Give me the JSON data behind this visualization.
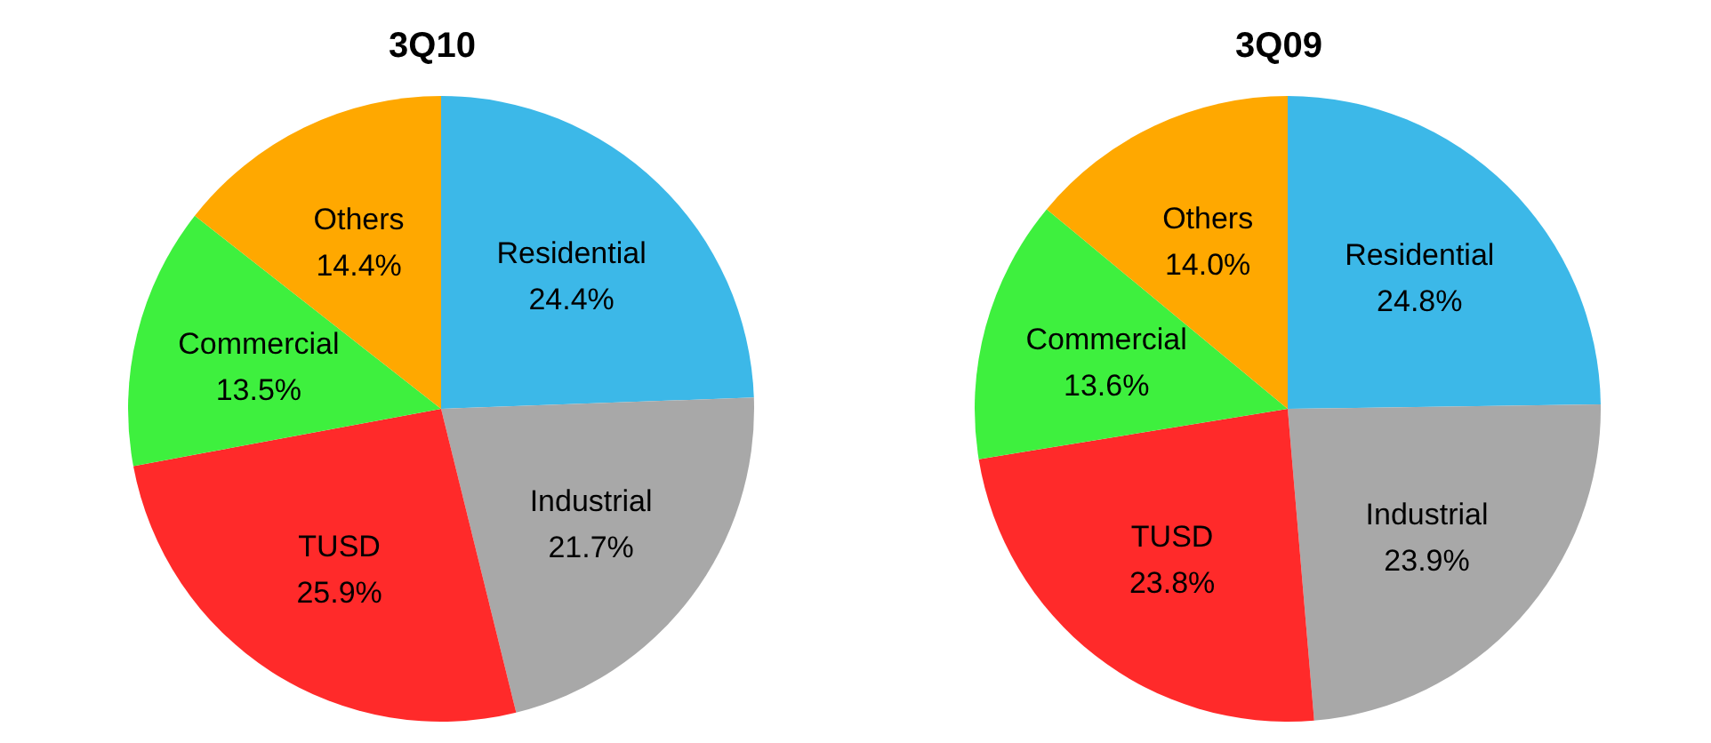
{
  "chart_data": [
    {
      "type": "pie",
      "title": "3Q10",
      "categories": [
        "Residential",
        "Industrial",
        "TUSD",
        "Commercial",
        "Others"
      ],
      "values": [
        24.4,
        21.7,
        25.9,
        13.5,
        14.4
      ],
      "value_labels": [
        "24.4%",
        "21.7%",
        "25.9%",
        "13.5%",
        "14.4%"
      ],
      "colors": [
        "#3cb8e8",
        "#a8a8a8",
        "#ff2a2a",
        "#3ef03e",
        "#ffa800"
      ]
    },
    {
      "type": "pie",
      "title": "3Q09",
      "categories": [
        "Residential",
        "Industrial",
        "TUSD",
        "Commercial",
        "Others"
      ],
      "values": [
        24.8,
        23.9,
        23.8,
        13.6,
        14.0
      ],
      "value_labels": [
        "24.8%",
        "23.9%",
        "23.8%",
        "13.6%",
        "14.0%"
      ],
      "colors": [
        "#3cb8e8",
        "#a8a8a8",
        "#ff2a2a",
        "#3ef03e",
        "#ffa800"
      ]
    }
  ]
}
